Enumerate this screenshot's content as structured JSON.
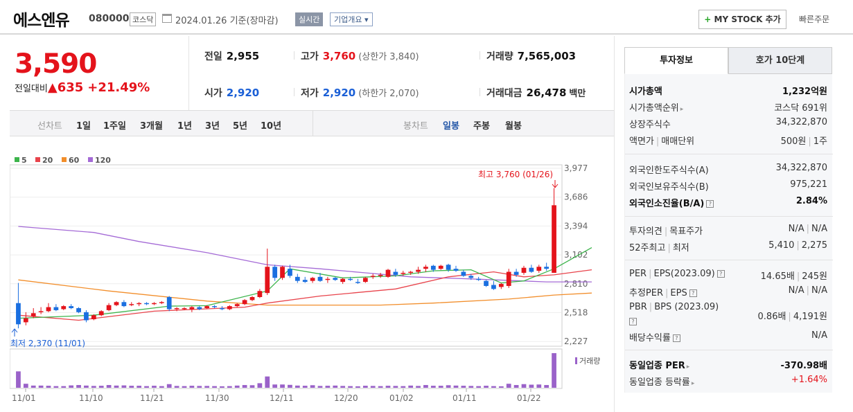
{
  "header": {
    "name": "에스엔유",
    "code": "080000",
    "market": "코스닥",
    "date": "2024.01.26",
    "date_suffix": "기준(장마감)",
    "realtime_label": "실시간",
    "summary_label": "기업개요",
    "summary_arrow": "▾",
    "mystock_plus": "+",
    "mystock_label": "MY STOCK 추가",
    "quick_order": "빠른주문"
  },
  "price": {
    "current": "3,590",
    "change_label": "전일대비",
    "change_arrow": "▲",
    "change": "635",
    "rate": "+21.49%"
  },
  "stats": {
    "prev_label": "전일",
    "prev": "2,955",
    "high_label": "고가",
    "high": "3,760",
    "upper_limit": "(상한가 3,840)",
    "volume_label": "거래량",
    "volume": "7,565,003",
    "open_label": "시가",
    "open": "2,920",
    "low_label": "저가",
    "low": "2,920",
    "lower_limit": "(하한가 2,070)",
    "amount_label": "거래대금",
    "amount": "26,478",
    "amount_unit": "백만"
  },
  "tabs": {
    "line_label": "선차트",
    "periods": [
      "1일",
      "1주일",
      "3개월",
      "1년",
      "3년",
      "5년",
      "10년"
    ],
    "candle_label": "봉차트",
    "candles": [
      "일봉",
      "주봉",
      "월봉"
    ]
  },
  "chart_data": {
    "type": "candlestick",
    "legend": [
      "5",
      "20",
      "60",
      "120"
    ],
    "ma_colors": {
      "5": "#3cb44b",
      "20": "#e8434b",
      "60": "#f28e2b",
      "120": "#a46ad6"
    },
    "up_color": "#e4131b",
    "down_color": "#1a6fe0",
    "y_ticks": [
      "3,977",
      "3,686",
      "3,394",
      "3,102",
      "2,810",
      "2,518",
      "2,227"
    ],
    "ylim": [
      2227,
      3977
    ],
    "x_ticks": [
      "11/01",
      "11/10",
      "11/21",
      "11/30",
      "12/11",
      "12/20",
      "01/02",
      "01/11",
      "01/22"
    ],
    "max_label": "최고 3,760 (01/26)",
    "min_label": "최저 2,370 (11/01)",
    "volume_label": "거래량",
    "candles": [
      {
        "o": 2620,
        "h": 2820,
        "l": 2370,
        "c": 2410
      },
      {
        "o": 2430,
        "h": 2530,
        "l": 2400,
        "c": 2470
      },
      {
        "o": 2490,
        "h": 2570,
        "l": 2470,
        "c": 2520
      },
      {
        "o": 2530,
        "h": 2580,
        "l": 2510,
        "c": 2540
      },
      {
        "o": 2540,
        "h": 2620,
        "l": 2530,
        "c": 2580
      },
      {
        "o": 2580,
        "h": 2610,
        "l": 2540,
        "c": 2550
      },
      {
        "o": 2560,
        "h": 2600,
        "l": 2550,
        "c": 2590
      },
      {
        "o": 2590,
        "h": 2610,
        "l": 2560,
        "c": 2570
      },
      {
        "o": 2570,
        "h": 2580,
        "l": 2520,
        "c": 2530
      },
      {
        "o": 2530,
        "h": 2550,
        "l": 2430,
        "c": 2450
      },
      {
        "o": 2460,
        "h": 2510,
        "l": 2450,
        "c": 2500
      },
      {
        "o": 2500,
        "h": 2550,
        "l": 2490,
        "c": 2540
      },
      {
        "o": 2550,
        "h": 2620,
        "l": 2540,
        "c": 2600
      },
      {
        "o": 2600,
        "h": 2640,
        "l": 2590,
        "c": 2630
      },
      {
        "o": 2630,
        "h": 2650,
        "l": 2580,
        "c": 2590
      },
      {
        "o": 2600,
        "h": 2630,
        "l": 2590,
        "c": 2610
      },
      {
        "o": 2610,
        "h": 2630,
        "l": 2590,
        "c": 2620
      },
      {
        "o": 2620,
        "h": 2630,
        "l": 2600,
        "c": 2610
      },
      {
        "o": 2610,
        "h": 2630,
        "l": 2600,
        "c": 2620
      },
      {
        "o": 2620,
        "h": 2640,
        "l": 2610,
        "c": 2630
      },
      {
        "o": 2680,
        "h": 2690,
        "l": 2540,
        "c": 2560
      },
      {
        "o": 2560,
        "h": 2580,
        "l": 2540,
        "c": 2570
      },
      {
        "o": 2560,
        "h": 2580,
        "l": 2550,
        "c": 2570
      },
      {
        "o": 2560,
        "h": 2590,
        "l": 2530,
        "c": 2580
      },
      {
        "o": 2580,
        "h": 2590,
        "l": 2550,
        "c": 2560
      },
      {
        "o": 2570,
        "h": 2600,
        "l": 2560,
        "c": 2590
      },
      {
        "o": 2590,
        "h": 2600,
        "l": 2570,
        "c": 2580
      },
      {
        "o": 2570,
        "h": 2590,
        "l": 2550,
        "c": 2560
      },
      {
        "o": 2560,
        "h": 2600,
        "l": 2550,
        "c": 2590
      },
      {
        "o": 2590,
        "h": 2620,
        "l": 2580,
        "c": 2610
      },
      {
        "o": 2610,
        "h": 2660,
        "l": 2600,
        "c": 2650
      },
      {
        "o": 2650,
        "h": 2690,
        "l": 2640,
        "c": 2680
      },
      {
        "o": 2680,
        "h": 2760,
        "l": 2670,
        "c": 2740
      },
      {
        "o": 2720,
        "h": 3160,
        "l": 2700,
        "c": 2980
      },
      {
        "o": 2980,
        "h": 3000,
        "l": 2840,
        "c": 2870
      },
      {
        "o": 2870,
        "h": 2990,
        "l": 2850,
        "c": 2980
      },
      {
        "o": 2960,
        "h": 3000,
        "l": 2870,
        "c": 2890
      },
      {
        "o": 2880,
        "h": 2910,
        "l": 2820,
        "c": 2840
      },
      {
        "o": 2850,
        "h": 2880,
        "l": 2820,
        "c": 2830
      },
      {
        "o": 2840,
        "h": 2880,
        "l": 2820,
        "c": 2870
      },
      {
        "o": 2880,
        "h": 2920,
        "l": 2830,
        "c": 2840
      },
      {
        "o": 2850,
        "h": 2880,
        "l": 2820,
        "c": 2860
      },
      {
        "o": 2870,
        "h": 2880,
        "l": 2840,
        "c": 2850
      },
      {
        "o": 2830,
        "h": 2870,
        "l": 2810,
        "c": 2860
      },
      {
        "o": 2860,
        "h": 2880,
        "l": 2840,
        "c": 2850
      },
      {
        "o": 2830,
        "h": 2860,
        "l": 2810,
        "c": 2820
      },
      {
        "o": 2830,
        "h": 2880,
        "l": 2820,
        "c": 2870
      },
      {
        "o": 2880,
        "h": 2910,
        "l": 2860,
        "c": 2890
      },
      {
        "o": 2890,
        "h": 2920,
        "l": 2870,
        "c": 2900
      },
      {
        "o": 2880,
        "h": 2960,
        "l": 2870,
        "c": 2950
      },
      {
        "o": 2930,
        "h": 2960,
        "l": 2880,
        "c": 2900
      },
      {
        "o": 2910,
        "h": 2940,
        "l": 2890,
        "c": 2920
      },
      {
        "o": 2920,
        "h": 2940,
        "l": 2900,
        "c": 2930
      },
      {
        "o": 2930,
        "h": 2980,
        "l": 2910,
        "c": 2950
      },
      {
        "o": 2960,
        "h": 3000,
        "l": 2930,
        "c": 2980
      },
      {
        "o": 2990,
        "h": 3000,
        "l": 2930,
        "c": 2950
      },
      {
        "o": 2960,
        "h": 3000,
        "l": 2950,
        "c": 2990
      },
      {
        "o": 3000,
        "h": 3010,
        "l": 2930,
        "c": 2950
      },
      {
        "o": 2960,
        "h": 2990,
        "l": 2930,
        "c": 2940
      },
      {
        "o": 2930,
        "h": 2950,
        "l": 2880,
        "c": 2890
      },
      {
        "o": 2890,
        "h": 2910,
        "l": 2850,
        "c": 2870
      },
      {
        "o": 2860,
        "h": 2880,
        "l": 2840,
        "c": 2850
      },
      {
        "o": 2840,
        "h": 2850,
        "l": 2780,
        "c": 2790
      },
      {
        "o": 2800,
        "h": 2840,
        "l": 2750,
        "c": 2760
      },
      {
        "o": 2780,
        "h": 2820,
        "l": 2760,
        "c": 2810
      },
      {
        "o": 2790,
        "h": 2960,
        "l": 2770,
        "c": 2930
      },
      {
        "o": 2930,
        "h": 2960,
        "l": 2880,
        "c": 2900
      },
      {
        "o": 2920,
        "h": 2990,
        "l": 2900,
        "c": 2970
      },
      {
        "o": 2970,
        "h": 3000,
        "l": 2920,
        "c": 2930
      },
      {
        "o": 2940,
        "h": 3000,
        "l": 2920,
        "c": 2980
      },
      {
        "o": 2980,
        "h": 3020,
        "l": 2940,
        "c": 2960
      },
      {
        "o": 2920,
        "h": 3760,
        "l": 2920,
        "c": 3590
      }
    ],
    "volumes": [
      900,
      220,
      120,
      120,
      110,
      90,
      90,
      130,
      150,
      120,
      100,
      110,
      150,
      120,
      130,
      110,
      110,
      90,
      110,
      90,
      200,
      100,
      90,
      110,
      100,
      100,
      90,
      80,
      90,
      120,
      150,
      140,
      250,
      620,
      180,
      180,
      160,
      120,
      110,
      140,
      100,
      110,
      120,
      100,
      90,
      80,
      110,
      100,
      90,
      110,
      100,
      90,
      120,
      100,
      150,
      110,
      110,
      140,
      120,
      110,
      100,
      90,
      110,
      90,
      80,
      220,
      150,
      200,
      170,
      180,
      150,
      1900
    ],
    "ma": {
      "5": [
        [
          0,
          2470
        ],
        [
          10,
          2500
        ],
        [
          20,
          2590
        ],
        [
          25,
          2595
        ],
        [
          33,
          2740
        ],
        [
          36,
          2960
        ],
        [
          43,
          2870
        ],
        [
          50,
          2890
        ],
        [
          55,
          2940
        ],
        [
          60,
          2950
        ],
        [
          64,
          2820
        ],
        [
          67,
          2840
        ],
        [
          71,
          2960
        ],
        [
          76,
          3170
        ]
      ],
      "20": [
        [
          0,
          2500
        ],
        [
          8,
          2450
        ],
        [
          18,
          2540
        ],
        [
          30,
          2580
        ],
        [
          33,
          2620
        ],
        [
          40,
          2690
        ],
        [
          50,
          2760
        ],
        [
          57,
          2880
        ],
        [
          63,
          2930
        ],
        [
          67,
          2880
        ],
        [
          71,
          2900
        ],
        [
          76,
          2950
        ]
      ],
      "60": [
        [
          0,
          2850
        ],
        [
          12,
          2740
        ],
        [
          25,
          2640
        ],
        [
          33,
          2600
        ],
        [
          38,
          2600
        ],
        [
          48,
          2600
        ],
        [
          55,
          2620
        ],
        [
          65,
          2660
        ],
        [
          71,
          2700
        ],
        [
          76,
          2720
        ]
      ],
      "120": [
        [
          0,
          3380
        ],
        [
          10,
          3320
        ],
        [
          16,
          3230
        ],
        [
          25,
          3120
        ],
        [
          33,
          3000
        ],
        [
          40,
          2960
        ],
        [
          46,
          2920
        ],
        [
          52,
          2880
        ],
        [
          60,
          2860
        ],
        [
          70,
          2830
        ],
        [
          76,
          2830
        ]
      ]
    }
  },
  "right": {
    "tab_invest": "투자정보",
    "tab_hoga": "호가 10단계",
    "market_cap_label": "시가총액",
    "market_cap": "1,232억원",
    "cap_rank_label": "시가총액순위",
    "cap_rank": "코스닥 691위",
    "shares_label": "상장주식수",
    "shares": "34,322,870",
    "par_label": "액면가",
    "unit_label": "매매단위",
    "par": "500원",
    "unit": "1주",
    "foreign_limit_label": "외국인한도주식수(A)",
    "foreign_limit": "34,322,870",
    "foreign_hold_label": "외국인보유주식수(B)",
    "foreign_hold": "975,221",
    "foreign_rate_label": "외국인소진율(B/A)",
    "foreign_rate": "2.84%",
    "opinion_label": "투자의견",
    "target_label": "목표주가",
    "opinion": "N/A",
    "target": "N/A",
    "w52_label": "52주최고",
    "w52_low_label": "최저",
    "w52_high": "5,410",
    "w52_low": "2,275",
    "per_label": "PER",
    "eps_label": "EPS(2023.09)",
    "per": "14.65배",
    "eps": "245원",
    "est_per_label": "추정PER",
    "est_eps_label": "EPS",
    "est_per": "N/A",
    "est_eps": "N/A",
    "pbr_label": "PBR",
    "bps_label": "BPS (2023.09)",
    "pbr": "0.86배",
    "bps": "4,191원",
    "div_label": "배당수익률",
    "div": "N/A",
    "ind_per_label": "동일업종 PER",
    "ind_per": "-370.98배",
    "ind_rate_label": "동일업종 등락률",
    "ind_rate": "+1.64%",
    "qm": "?",
    "arrow": "▸",
    "bar": "|"
  }
}
